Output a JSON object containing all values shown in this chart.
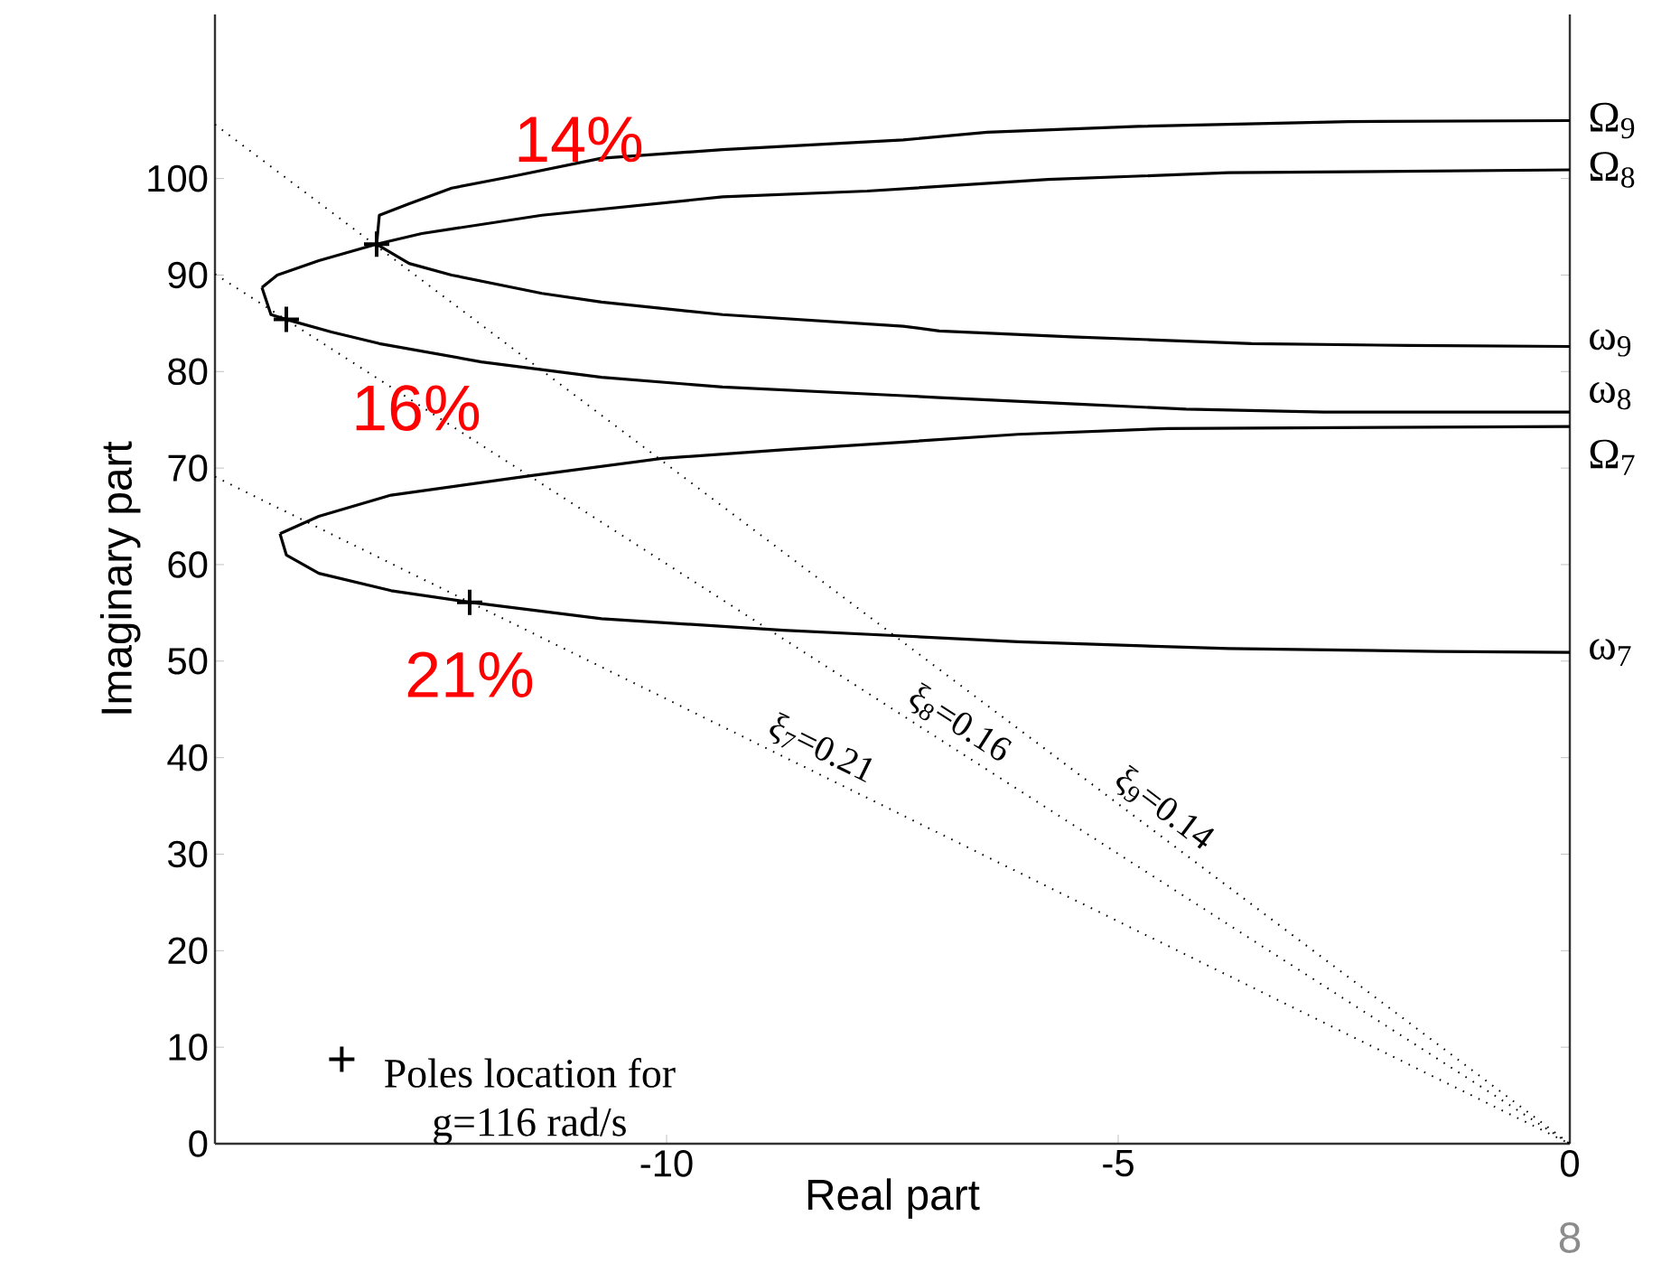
{
  "chart_data": {
    "type": "line",
    "xlabel": "Real part",
    "ylabel": "Imaginary part",
    "xlim": [
      -15,
      0
    ],
    "ylim": [
      0,
      117
    ],
    "xticks": [
      -10,
      -5,
      0
    ],
    "yticks": [
      0,
      10,
      20,
      30,
      40,
      50,
      60,
      70,
      80,
      90,
      100
    ],
    "grid": false,
    "legend": "bottom left",
    "marker": "none",
    "series": [
      {
        "name": "Ω$_{9}$",
        "color": "#000000",
        "line_style": "solid",
        "x": [
          -13.21,
          -13.18,
          -12.85,
          -12.38,
          -11.72,
          -10.72,
          -9.38,
          -7.38,
          -6.45,
          -4.78,
          -2.45,
          0
        ],
        "values": [
          93.2,
          96.2,
          97.4,
          99.0,
          100.2,
          102.1,
          103.0,
          104.0,
          104.8,
          105.4,
          105.9,
          106.0
        ]
      },
      {
        "name": "Ω$_{8}$",
        "color": "#000000",
        "line_style": "solid",
        "x": [
          -14.48,
          -14.31,
          -13.85,
          -13.21,
          -12.71,
          -11.38,
          -9.38,
          -7.78,
          -5.78,
          -3.78,
          0
        ],
        "values": [
          88.7,
          90.0,
          91.5,
          93.2,
          94.3,
          96.2,
          98.1,
          98.7,
          99.9,
          100.6,
          100.9
        ]
      },
      {
        "name": "ω$_{9}$",
        "color": "#000000",
        "line_style": "solid",
        "x": [
          -13.21,
          -12.85,
          -12.38,
          -11.38,
          -10.72,
          -9.38,
          -7.38,
          -6.98,
          -5.52,
          -4.65,
          -3.52,
          -1.78,
          0
        ],
        "values": [
          93.2,
          91.2,
          90.0,
          88.1,
          87.2,
          85.9,
          84.7,
          84.2,
          83.6,
          83.3,
          82.9,
          82.7,
          82.6
        ]
      },
      {
        "name": "ω$_{8}$",
        "color": "#000000",
        "line_style": "solid",
        "x": [
          -14.48,
          -14.38,
          -14.21,
          -13.71,
          -13.18,
          -12.05,
          -10.72,
          -9.38,
          -7.38,
          -6.98,
          -5.38,
          -4.25,
          -2.72,
          0
        ],
        "values": [
          88.7,
          85.9,
          85.4,
          84.1,
          82.9,
          81.0,
          79.4,
          78.4,
          77.5,
          77.3,
          76.6,
          76.1,
          75.8,
          75.8
        ]
      },
      {
        "name": "Ω$_{7}$",
        "color": "#000000",
        "line_style": "solid",
        "x": [
          -14.28,
          -13.85,
          -13.05,
          -11.51,
          -10.05,
          -8.71,
          -7.38,
          -6.11,
          -4.45,
          0
        ],
        "values": [
          63.2,
          65.0,
          67.2,
          69.2,
          71.0,
          71.9,
          72.7,
          73.5,
          74.1,
          74.3
        ]
      },
      {
        "name": "ω$_{7}$",
        "color": "#000000",
        "line_style": "solid",
        "x": [
          -14.28,
          -14.21,
          -13.85,
          -13.05,
          -12.18,
          -10.72,
          -8.71,
          -7.38,
          -6.11,
          -3.78,
          -1.45,
          0
        ],
        "values": [
          63.2,
          61.0,
          59.1,
          57.3,
          56.1,
          54.4,
          53.2,
          52.6,
          52.0,
          51.3,
          51.0,
          50.9
        ]
      },
      {
        "name": "ξ$_{9}$=0.14",
        "color": "#000000",
        "line_style": "dotted",
        "x": [
          -15,
          0
        ],
        "values": [
          105.6,
          0
        ]
      },
      {
        "name": "ξ$_{8}$=0.16",
        "color": "#000000",
        "line_style": "dotted",
        "x": [
          -15,
          0
        ],
        "values": [
          90.1,
          0
        ]
      },
      {
        "name": "ξ$_{7}$=0.21",
        "color": "#000000",
        "line_style": "dotted",
        "x": [
          -15,
          0
        ],
        "values": [
          69.1,
          0
        ]
      },
      {
        "name": "Poles location for g=116 rad/s",
        "type": "scatter",
        "marker": "cross",
        "color": "#000000",
        "x": [
          -13.21,
          -14.21,
          -12.18
        ],
        "values": [
          93.2,
          85.4,
          56.1
        ]
      }
    ],
    "annotations": [
      {
        "text": "14%",
        "x": -13.21,
        "y": 93.2
      },
      {
        "text": "16%",
        "x": -14.21,
        "y": 85.4
      },
      {
        "text": "21%",
        "x": -12.18,
        "y": 56.1
      },
      "8"
    ]
  }
}
